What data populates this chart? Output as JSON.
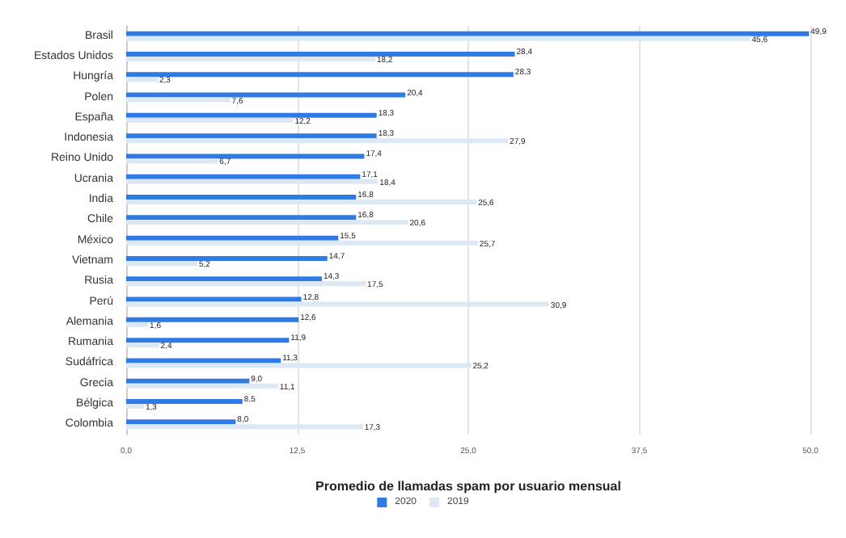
{
  "chart_data": {
    "type": "bar",
    "orientation": "horizontal",
    "xlabel": "Promedio de llamadas spam por usuario mensual",
    "categories": [
      "Brasil",
      "Estados Unidos",
      "Hungría",
      "Polen",
      "España",
      "Indonesia",
      "Reino Unido",
      "Ucrania",
      "India",
      "Chile",
      "México",
      "Vietnam",
      "Rusia",
      "Perú",
      "Alemania",
      "Rumania",
      "Sudáfrica",
      "Grecia",
      "Bélgica",
      "Colombia"
    ],
    "series": [
      {
        "name": "2020",
        "color": "#2f7ae5",
        "values": [
          49.9,
          28.4,
          28.3,
          20.4,
          18.3,
          18.3,
          17.4,
          17.1,
          16.8,
          16.8,
          15.5,
          14.7,
          14.3,
          12.8,
          12.6,
          11.9,
          11.3,
          9.0,
          8.5,
          8.0
        ],
        "value_labels": [
          "49,9",
          "28,4",
          "28,3",
          "20,4",
          "18,3",
          "18,3",
          "17,4",
          "17,1",
          "16,8",
          "16,8",
          "15,5",
          "14,7",
          "14,3",
          "12,8",
          "12,6",
          "11,9",
          "11,3",
          "9,0",
          "8,5",
          "8,0"
        ]
      },
      {
        "name": "2019",
        "color": "#dde8f5",
        "values": [
          45.6,
          18.2,
          2.3,
          7.6,
          12.2,
          27.9,
          6.7,
          18.4,
          25.6,
          20.6,
          25.7,
          5.2,
          17.5,
          30.9,
          1.6,
          2.4,
          25.2,
          11.1,
          1.3,
          17.3
        ],
        "value_labels": [
          "45,6",
          "18,2",
          "2,3",
          "7,6",
          "12,2",
          "27,9",
          "6,7",
          "18,4",
          "25,6",
          "20,6",
          "25,7",
          "5,2",
          "17,5",
          "30,9",
          "1,6",
          "2,4",
          "25,2",
          "11,1",
          "1,3",
          "17,3"
        ]
      }
    ],
    "xlim": [
      0,
      50
    ],
    "xticks": [
      {
        "value": 0,
        "label": "0,0"
      },
      {
        "value": 12.5,
        "label": "12,5"
      },
      {
        "value": 25,
        "label": "25,0"
      },
      {
        "value": 37.5,
        "label": "37,5"
      },
      {
        "value": 50,
        "label": "50,0"
      }
    ],
    "grid": "x",
    "legend": "bottom"
  }
}
